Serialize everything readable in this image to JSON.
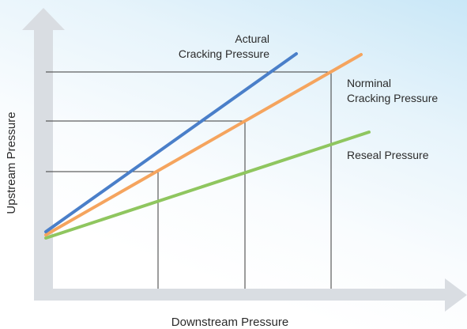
{
  "axes": {
    "x_label": "Downstream Pressure",
    "y_label": "Upstream Pressure"
  },
  "lines": {
    "actual": {
      "label_line1": "Actural",
      "label_line2": "Cracking Pressure",
      "color": "#4a7fc9"
    },
    "nominal": {
      "label_line1": "Norminal",
      "label_line2": "Cracking Pressure",
      "color": "#f5a45e"
    },
    "reseal": {
      "label_line1": "Reseal Pressure",
      "color": "#8fc65f"
    }
  },
  "colors": {
    "axis_arrow": "#d9dde2",
    "guide_lines": "#3a3a3a"
  }
}
